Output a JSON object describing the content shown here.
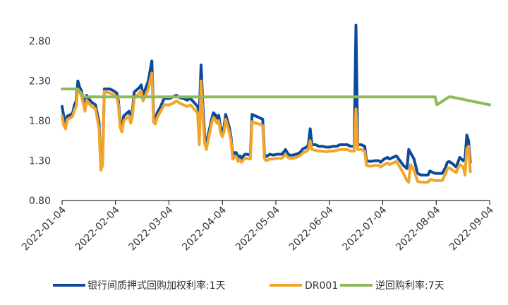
{
  "chart_data": {
    "type": "line",
    "title": "",
    "xlabel": "",
    "ylabel": "",
    "ylim": [
      0.8,
      3.05
    ],
    "y_ticks": [
      "0.80",
      "1.30",
      "1.80",
      "2.30",
      "2.80"
    ],
    "x_tick_labels": [
      "2022-01-04",
      "2022-02-04",
      "2022-03-04",
      "2022-04-04",
      "2022-05-04",
      "2022-06-04",
      "2022-07-04",
      "2022-08-04",
      "2022-09-04"
    ],
    "x_range_days": [
      0,
      243
    ],
    "series": [
      {
        "name": "银行间质押式回购加权利率:1天",
        "color": "#0d4a9b",
        "points": [
          [
            0,
            1.98
          ],
          [
            1,
            1.85
          ],
          [
            2,
            1.78
          ],
          [
            3,
            1.86
          ],
          [
            5,
            1.88
          ],
          [
            6,
            1.9
          ],
          [
            7,
            2.0
          ],
          [
            8,
            2.05
          ],
          [
            9,
            2.3
          ],
          [
            10,
            2.22
          ],
          [
            11,
            2.18
          ],
          [
            12,
            2.08
          ],
          [
            13,
            1.96
          ],
          [
            14,
            2.12
          ],
          [
            15,
            2.08
          ],
          [
            17,
            2.03
          ],
          [
            19,
            2.0
          ],
          [
            21,
            1.78
          ],
          [
            22,
            1.22
          ],
          [
            23,
            1.3
          ],
          [
            24,
            2.2
          ],
          [
            27,
            2.2
          ],
          [
            29,
            2.18
          ],
          [
            31,
            2.15
          ],
          [
            32,
            2.05
          ],
          [
            33,
            1.78
          ],
          [
            34,
            1.72
          ],
          [
            35,
            1.86
          ],
          [
            37,
            1.9
          ],
          [
            38,
            1.92
          ],
          [
            39,
            1.83
          ],
          [
            40,
            1.93
          ],
          [
            41,
            2.16
          ],
          [
            44,
            2.22
          ],
          [
            45,
            2.25
          ],
          [
            46,
            2.12
          ],
          [
            47,
            2.18
          ],
          [
            49,
            2.3
          ],
          [
            51,
            2.55
          ],
          [
            52,
            1.85
          ],
          [
            53,
            1.82
          ],
          [
            54,
            1.9
          ],
          [
            56,
            1.98
          ],
          [
            58,
            2.08
          ],
          [
            61,
            2.08
          ],
          [
            63,
            2.1
          ],
          [
            65,
            2.12
          ],
          [
            67,
            2.09
          ],
          [
            69,
            2.08
          ],
          [
            71,
            2.06
          ],
          [
            73,
            2.08
          ],
          [
            75,
            2.03
          ],
          [
            77,
            1.98
          ],
          [
            78,
            1.9
          ],
          [
            79,
            2.5
          ],
          [
            80,
            2.0
          ],
          [
            81,
            1.62
          ],
          [
            82,
            1.48
          ],
          [
            83,
            1.62
          ],
          [
            85,
            1.82
          ],
          [
            86,
            1.9
          ],
          [
            87,
            1.88
          ],
          [
            88,
            1.83
          ],
          [
            89,
            1.87
          ],
          [
            90,
            1.72
          ],
          [
            91,
            1.65
          ],
          [
            92,
            1.72
          ],
          [
            93,
            1.88
          ],
          [
            95,
            1.72
          ],
          [
            96,
            1.6
          ],
          [
            97,
            1.36
          ],
          [
            98,
            1.4
          ],
          [
            99,
            1.4
          ],
          [
            100,
            1.34
          ],
          [
            101,
            1.36
          ],
          [
            102,
            1.33
          ],
          [
            103,
            1.36
          ],
          [
            104,
            1.38
          ],
          [
            105,
            1.38
          ],
          [
            107,
            1.37
          ],
          [
            108,
            1.88
          ],
          [
            110,
            1.86
          ],
          [
            112,
            1.84
          ],
          [
            114,
            1.82
          ],
          [
            115,
            1.38
          ],
          [
            116,
            1.35
          ],
          [
            118,
            1.38
          ],
          [
            120,
            1.37
          ],
          [
            122,
            1.38
          ],
          [
            125,
            1.38
          ],
          [
            127,
            1.44
          ],
          [
            128,
            1.4
          ],
          [
            129,
            1.37
          ],
          [
            131,
            1.37
          ],
          [
            133,
            1.38
          ],
          [
            135,
            1.4
          ],
          [
            137,
            1.45
          ],
          [
            139,
            1.47
          ],
          [
            140,
            1.5
          ],
          [
            141,
            1.7
          ],
          [
            142,
            1.5
          ],
          [
            144,
            1.5
          ],
          [
            146,
            1.48
          ],
          [
            148,
            1.48
          ],
          [
            150,
            1.47
          ],
          [
            152,
            1.47
          ],
          [
            154,
            1.48
          ],
          [
            156,
            1.48
          ],
          [
            158,
            1.5
          ],
          [
            160,
            1.5
          ],
          [
            162,
            1.5
          ],
          [
            164,
            1.48
          ],
          [
            166,
            1.48
          ],
          [
            167,
            3.0
          ],
          [
            168,
            1.5
          ],
          [
            170,
            1.5
          ],
          [
            172,
            1.48
          ],
          [
            173,
            1.3
          ],
          [
            175,
            1.29
          ],
          [
            178,
            1.3
          ],
          [
            180,
            1.3
          ],
          [
            181,
            1.28
          ],
          [
            183,
            1.32
          ],
          [
            185,
            1.34
          ],
          [
            186,
            1.32
          ],
          [
            188,
            1.34
          ],
          [
            190,
            1.36
          ],
          [
            192,
            1.3
          ],
          [
            194,
            1.24
          ],
          [
            196,
            1.2
          ],
          [
            197,
            1.44
          ],
          [
            198,
            1.4
          ],
          [
            200,
            1.32
          ],
          [
            202,
            1.14
          ],
          [
            204,
            1.12
          ],
          [
            206,
            1.12
          ],
          [
            208,
            1.12
          ],
          [
            209,
            1.17
          ],
          [
            210,
            1.16
          ],
          [
            212,
            1.14
          ],
          [
            214,
            1.14
          ],
          [
            216,
            1.14
          ],
          [
            218,
            1.22
          ],
          [
            219,
            1.28
          ],
          [
            220,
            1.29
          ],
          [
            222,
            1.26
          ],
          [
            224,
            1.22
          ],
          [
            226,
            1.34
          ],
          [
            228,
            1.3
          ],
          [
            229,
            1.32
          ],
          [
            230,
            1.62
          ],
          [
            231,
            1.55
          ],
          [
            232,
            1.28
          ]
        ]
      },
      {
        "name": "DR001",
        "color": "#f2a52a",
        "points": [
          [
            0,
            1.86
          ],
          [
            1,
            1.74
          ],
          [
            2,
            1.7
          ],
          [
            3,
            1.82
          ],
          [
            5,
            1.84
          ],
          [
            6,
            1.86
          ],
          [
            7,
            1.94
          ],
          [
            8,
            1.98
          ],
          [
            9,
            2.2
          ],
          [
            10,
            2.16
          ],
          [
            11,
            2.12
          ],
          [
            12,
            2.02
          ],
          [
            13,
            1.92
          ],
          [
            14,
            2.06
          ],
          [
            15,
            2.02
          ],
          [
            17,
            1.98
          ],
          [
            19,
            1.95
          ],
          [
            21,
            1.7
          ],
          [
            22,
            1.18
          ],
          [
            23,
            1.24
          ],
          [
            24,
            2.17
          ],
          [
            27,
            2.15
          ],
          [
            29,
            2.13
          ],
          [
            31,
            2.1
          ],
          [
            32,
            2.0
          ],
          [
            33,
            1.72
          ],
          [
            34,
            1.66
          ],
          [
            35,
            1.8
          ],
          [
            37,
            1.84
          ],
          [
            38,
            1.86
          ],
          [
            39,
            1.77
          ],
          [
            40,
            1.87
          ],
          [
            41,
            2.08
          ],
          [
            44,
            2.15
          ],
          [
            45,
            2.17
          ],
          [
            46,
            2.05
          ],
          [
            47,
            2.1
          ],
          [
            49,
            2.2
          ],
          [
            51,
            2.4
          ],
          [
            52,
            1.78
          ],
          [
            53,
            1.76
          ],
          [
            54,
            1.84
          ],
          [
            56,
            1.92
          ],
          [
            58,
            2.0
          ],
          [
            61,
            2.0
          ],
          [
            63,
            2.02
          ],
          [
            65,
            2.05
          ],
          [
            67,
            2.02
          ],
          [
            69,
            2.0
          ],
          [
            71,
            1.98
          ],
          [
            73,
            2.0
          ],
          [
            75,
            1.95
          ],
          [
            77,
            1.9
          ],
          [
            78,
            1.5
          ],
          [
            79,
            2.3
          ],
          [
            80,
            1.86
          ],
          [
            81,
            1.52
          ],
          [
            82,
            1.44
          ],
          [
            83,
            1.56
          ],
          [
            85,
            1.77
          ],
          [
            86,
            1.84
          ],
          [
            87,
            1.82
          ],
          [
            88,
            1.77
          ],
          [
            89,
            1.8
          ],
          [
            90,
            1.66
          ],
          [
            91,
            1.6
          ],
          [
            92,
            1.66
          ],
          [
            93,
            1.82
          ],
          [
            95,
            1.66
          ],
          [
            96,
            1.55
          ],
          [
            97,
            1.32
          ],
          [
            98,
            1.35
          ],
          [
            99,
            1.35
          ],
          [
            100,
            1.29
          ],
          [
            101,
            1.31
          ],
          [
            102,
            1.28
          ],
          [
            103,
            1.31
          ],
          [
            104,
            1.33
          ],
          [
            105,
            1.33
          ],
          [
            107,
            1.32
          ],
          [
            108,
            1.79
          ],
          [
            110,
            1.77
          ],
          [
            112,
            1.76
          ],
          [
            114,
            1.74
          ],
          [
            115,
            1.33
          ],
          [
            116,
            1.3
          ],
          [
            118,
            1.32
          ],
          [
            120,
            1.32
          ],
          [
            122,
            1.33
          ],
          [
            125,
            1.33
          ],
          [
            127,
            1.38
          ],
          [
            128,
            1.35
          ],
          [
            129,
            1.33
          ],
          [
            131,
            1.33
          ],
          [
            133,
            1.34
          ],
          [
            135,
            1.36
          ],
          [
            137,
            1.4
          ],
          [
            139,
            1.42
          ],
          [
            140,
            1.44
          ],
          [
            141,
            1.55
          ],
          [
            142,
            1.44
          ],
          [
            144,
            1.43
          ],
          [
            146,
            1.42
          ],
          [
            148,
            1.42
          ],
          [
            150,
            1.41
          ],
          [
            152,
            1.42
          ],
          [
            154,
            1.42
          ],
          [
            156,
            1.43
          ],
          [
            158,
            1.44
          ],
          [
            160,
            1.44
          ],
          [
            162,
            1.44
          ],
          [
            164,
            1.42
          ],
          [
            166,
            1.42
          ],
          [
            167,
            1.95
          ],
          [
            168,
            1.44
          ],
          [
            170,
            1.44
          ],
          [
            172,
            1.42
          ],
          [
            173,
            1.24
          ],
          [
            175,
            1.23
          ],
          [
            178,
            1.24
          ],
          [
            180,
            1.24
          ],
          [
            181,
            1.22
          ],
          [
            183,
            1.25
          ],
          [
            185,
            1.27
          ],
          [
            186,
            1.25
          ],
          [
            188,
            1.27
          ],
          [
            190,
            1.29
          ],
          [
            192,
            1.22
          ],
          [
            194,
            1.14
          ],
          [
            196,
            1.05
          ],
          [
            197,
            1.03
          ],
          [
            198,
            1.25
          ],
          [
            200,
            1.18
          ],
          [
            202,
            1.04
          ],
          [
            204,
            1.03
          ],
          [
            206,
            1.03
          ],
          [
            208,
            1.03
          ],
          [
            209,
            1.06
          ],
          [
            210,
            1.06
          ],
          [
            212,
            1.05
          ],
          [
            214,
            1.05
          ],
          [
            216,
            1.05
          ],
          [
            218,
            1.14
          ],
          [
            219,
            1.2
          ],
          [
            220,
            1.21
          ],
          [
            222,
            1.18
          ],
          [
            224,
            1.15
          ],
          [
            226,
            1.25
          ],
          [
            228,
            1.22
          ],
          [
            229,
            1.12
          ],
          [
            230,
            1.45
          ],
          [
            231,
            1.48
          ],
          [
            232,
            1.16
          ]
        ]
      },
      {
        "name": "逆回购利率:7天",
        "color": "#8fba5a",
        "points": [
          [
            0,
            2.2
          ],
          [
            7,
            2.2
          ],
          [
            8,
            2.2
          ],
          [
            11,
            2.15
          ],
          [
            12,
            2.1
          ],
          [
            36,
            2.1
          ],
          [
            220,
            2.1
          ],
          [
            221,
            2.1
          ],
          [
            212,
            2.1
          ],
          [
            213,
            2.0
          ],
          [
            243,
            2.0
          ]
        ]
      }
    ]
  }
}
